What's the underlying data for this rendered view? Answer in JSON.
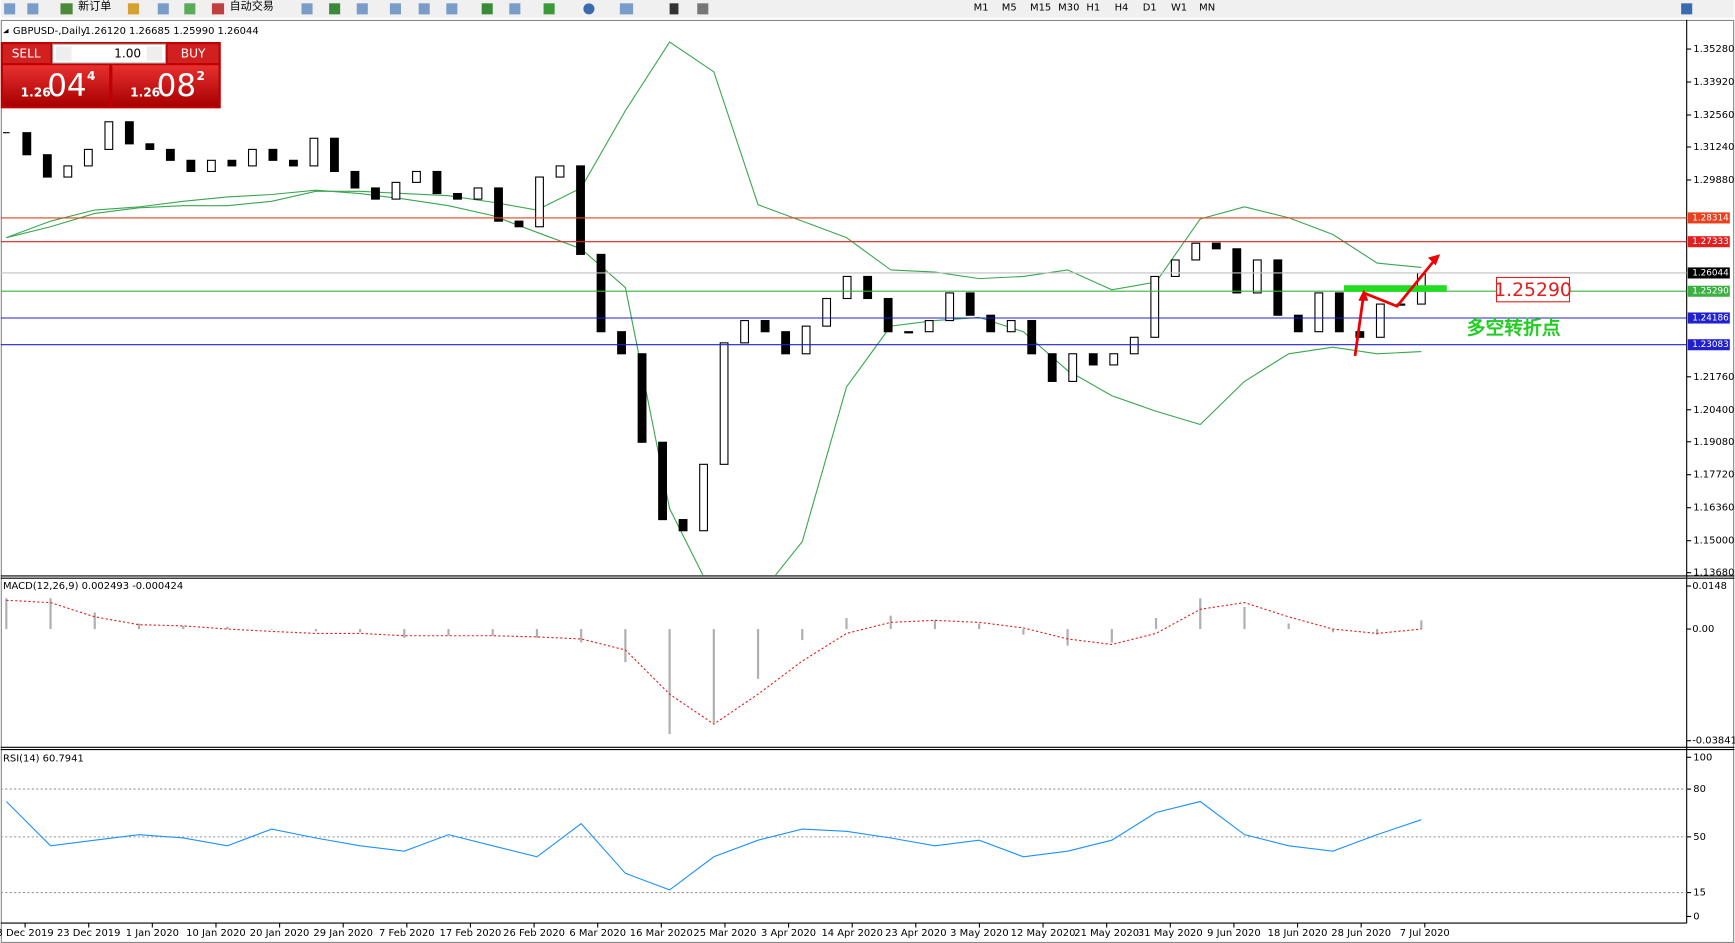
{
  "toolbar": {
    "buttons": [
      "新订单",
      "自动交易"
    ],
    "timeframes": [
      "M1",
      "M5",
      "M15",
      "M30",
      "H1",
      "H4",
      "D1",
      "W1",
      "MN"
    ]
  },
  "trade_panel": {
    "sell": "SELL",
    "lot": "1.00",
    "buy": "BUY",
    "bid": [
      "1.26",
      "04",
      "4"
    ],
    "ask": [
      "1.26",
      "08",
      "2"
    ]
  },
  "chart_data": [
    {
      "type": "candlestick",
      "title": "GBPUSD-,Daily",
      "subtitle": "1.26120 1.26685 1.25990 1.26044",
      "date_labels": [
        "3 Dec 2019",
        "23 Dec 2019",
        "1 Jan 2020",
        "10 Jan 2020",
        "20 Jan 2020",
        "29 Jan 2020",
        "7 Feb 2020",
        "17 Feb 2020",
        "26 Feb 2020",
        "6 Mar 2020",
        "16 Mar 2020",
        "25 Mar 2020",
        "3 Apr 2020",
        "14 Apr 2020",
        "23 Apr 2020",
        "3 May 2020",
        "12 May 2020",
        "21 May 2020",
        "31 May 2020",
        "9 Jun 2020",
        "18 Jun 2020",
        "28 Jun 2020",
        "7 Jul 2020"
      ],
      "close": [
        1.3183,
        1.3092,
        1.3,
        1.3046,
        1.3114,
        1.3228,
        1.3137,
        1.3114,
        1.3069,
        1.3023,
        1.3069,
        1.3046,
        1.3114,
        1.3069,
        1.3046,
        1.316,
        1.3023,
        1.2955,
        1.2909,
        1.2978,
        1.3023,
        1.2932,
        1.2909,
        1.2955,
        1.2818,
        1.2795,
        1.3,
        1.3046,
        1.2681,
        1.2362,
        1.2271,
        1.1906,
        1.1587,
        1.1541,
        1.1815,
        1.2316,
        1.2408,
        1.2362,
        1.2271,
        1.2385,
        1.2499,
        1.259,
        1.2499,
        1.2362,
        1.2362,
        1.2408,
        1.2522,
        1.243,
        1.2362,
        1.2408,
        1.2271,
        1.2157,
        1.2271,
        1.2225,
        1.2271,
        1.2339,
        1.259,
        1.2658,
        1.2727,
        1.2704,
        1.2522,
        1.2658,
        1.243,
        1.2362,
        1.2522,
        1.2362,
        1.2339,
        1.2476,
        1.2476,
        1.2604
      ],
      "up_color": "#ffffff",
      "down_color": "#000000",
      "bands": [
        {
          "color": "#3aa650",
          "values": [
            1.275,
            1.2795,
            1.285,
            1.2873,
            1.2882,
            1.2882,
            1.29,
            1.2941,
            1.2941,
            1.2932,
            1.2923,
            1.2896,
            1.2864,
            1.2955,
            1.3274,
            1.3557,
            1.3434,
            1.2886,
            1.2818,
            1.275,
            1.2617,
            1.2608,
            1.2581,
            1.259,
            1.2617,
            1.2535,
            1.2567,
            1.2827,
            1.2877,
            1.2832,
            1.2763,
            1.2645,
            1.2627
          ]
        },
        {
          "color": "#3aa650",
          "values": [
            1.275,
            1.2818,
            1.2864,
            1.2877,
            1.29,
            1.2918,
            1.2928,
            1.2946,
            1.2932,
            1.2909,
            1.2882,
            1.2841,
            1.2772,
            1.2704,
            1.2544,
            1.1632,
            1.1268,
            1.1268,
            1.1496,
            1.2134,
            1.2385,
            1.2408,
            1.2421,
            1.2362,
            1.2202,
            1.2098,
            1.2034,
            1.1979,
            1.2157,
            1.2271,
            1.2298,
            1.2271,
            1.228
          ]
        }
      ],
      "levels": [
        {
          "value": 1.28314,
          "color": "#e8401c"
        },
        {
          "value": 1.27333,
          "color": "#e02020"
        },
        {
          "value": 1.26044,
          "color": "#000000",
          "line_color": "#c0c0c0"
        },
        {
          "value": {
            "value": 1.2529,
            "label": "1.25290"
          },
          "color": "#3cb043"
        },
        {
          "value": 1.24186,
          "color": "#2020d0"
        },
        {
          "value": 1.23083,
          "color": "#2020d0"
        }
      ],
      "annotations": [
        "1.25290",
        "多空转折点"
      ],
      "ylim": [
        1.1359,
        1.363
      ],
      "yticks": [
        {
          "value": 1.3528,
          "label": "1.35280"
        },
        {
          "value": 1.3392,
          "label": "1.33920"
        },
        {
          "value": 1.3256,
          "label": "1.32560"
        },
        {
          "value": 1.3124,
          "label": "1.31240"
        },
        {
          "value": 1.2988,
          "label": "1.29880"
        },
        {
          "value": 1.2176,
          "label": "1.21760"
        },
        {
          "value": 1.204,
          "label": "1.20400"
        },
        {
          "value": 1.1908,
          "label": "1.19080"
        },
        {
          "value": 1.1772,
          "label": "1.17720"
        },
        {
          "value": 1.1636,
          "label": "1.16360"
        },
        {
          "value": 1.15,
          "label": "1.15000"
        },
        {
          "value": 1.1368,
          "label": "1.13680"
        }
      ]
    },
    {
      "type": "macd",
      "title": "MACD(12,26,9) 0.002493 -0.000424",
      "bar_color": "#b0b0b0",
      "line_color": "#e02020",
      "values": [
        0.0106,
        0.0106,
        0.0057,
        0.0019,
        0.0011,
        0.0008,
        0,
        -0.0008,
        -0.0011,
        -0.003,
        -0.0023,
        -0.0023,
        -0.003,
        -0.0046,
        -0.0114,
        -0.0361,
        -0.0323,
        -0.0171,
        -0.0038,
        0.0038,
        0.0046,
        0.003,
        0.0019,
        -0.0019,
        -0.0057,
        -0.0046,
        0.0038,
        0.0106,
        0.0076,
        0.0019,
        -0.0011,
        -0.0019,
        0.003
      ],
      "signal": [
        0.0099,
        0.0091,
        0.0042,
        0.0015,
        0.0011,
        0,
        -0.0008,
        -0.0015,
        -0.0015,
        -0.0023,
        -0.0023,
        -0.0023,
        -0.0027,
        -0.0034,
        -0.0072,
        -0.0224,
        -0.0327,
        -0.0224,
        -0.011,
        -0.0015,
        0.0023,
        0.003,
        0.0023,
        0.0004,
        -0.0034,
        -0.0053,
        -0.0015,
        0.0068,
        0.0091,
        0.0042,
        0,
        -0.0015,
        0
      ],
      "ylim": [
        -0.0403,
        0.0175
      ],
      "yticks": [
        0.0148,
        {
          "value": 0,
          "label": "0.00"
        },
        -0.038415
      ]
    },
    {
      "type": "line",
      "title": "RSI(14) 60.7941",
      "color": "#1e90ff",
      "values": [
        72.2,
        44.4,
        47.9,
        51.4,
        49.3,
        44.4,
        54.9,
        49.3,
        44.4,
        41.0,
        51.4,
        44.4,
        37.5,
        58.3,
        27.1,
        16.7,
        37.5,
        47.9,
        54.9,
        53.5,
        49.3,
        44.4,
        47.9,
        37.5,
        41.0,
        47.9,
        65.3,
        72.2,
        51.4,
        44.4,
        41.0,
        51.4,
        60.8
      ],
      "ylim": [
        0,
        100
      ],
      "yticks": [
        100,
        80,
        50,
        15,
        0
      ],
      "levels": [
        80,
        50,
        15
      ]
    }
  ]
}
